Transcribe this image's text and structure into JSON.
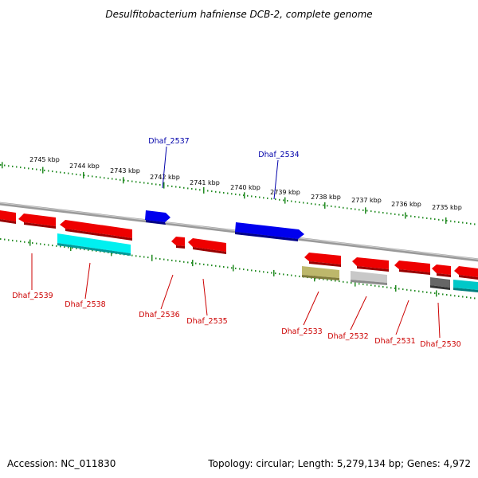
{
  "title": "Desulfitobacterium hafniense DCB-2, complete genome",
  "footer": {
    "accession": "Accession: NC_011830",
    "summary": "Topology: circular; Length: 5,279,134 bp; Genes: 4,972"
  },
  "ticks": [
    {
      "label": "2745 kbp"
    },
    {
      "label": "2744 kbp"
    },
    {
      "label": "2743 kbp"
    },
    {
      "label": "2742 kbp"
    },
    {
      "label": "2741 kbp"
    },
    {
      "label": "2740 kbp"
    },
    {
      "label": "2739 kbp"
    },
    {
      "label": "2738 kbp"
    },
    {
      "label": "2737 kbp"
    },
    {
      "label": "2736 kbp"
    },
    {
      "label": "2735 kbp"
    }
  ],
  "labeled_genes": [
    {
      "name": "Dhaf_2537",
      "strand": "forward",
      "color": "#0000ee"
    },
    {
      "name": "Dhaf_2534",
      "strand": "forward",
      "color": "#0000ee"
    },
    {
      "name": "Dhaf_2539",
      "strand": "reverse",
      "color": "#ee0000"
    },
    {
      "name": "Dhaf_2538",
      "strand": "reverse",
      "color": "#ee0000"
    },
    {
      "name": "Dhaf_2536",
      "strand": "reverse",
      "color": "#ee0000"
    },
    {
      "name": "Dhaf_2535",
      "strand": "reverse",
      "color": "#ee0000"
    },
    {
      "name": "Dhaf_2533",
      "strand": "reverse",
      "color": "#ee0000"
    },
    {
      "name": "Dhaf_2532",
      "strand": "reverse",
      "color": "#ee0000"
    },
    {
      "name": "Dhaf_2531",
      "strand": "reverse",
      "color": "#ee0000"
    },
    {
      "name": "Dhaf_2530",
      "strand": "reverse",
      "color": "#ee0000"
    }
  ],
  "colors": {
    "forward_cds": "#0000ee",
    "reverse_cds": "#ee0000",
    "rna_cyan": "#00e0e0",
    "rna_olive": "#bdb76b",
    "pseudo_gray": "#bbbbbb",
    "other_darkgray": "#666666",
    "tick_green": "#228b22",
    "backbone": "#888888"
  }
}
